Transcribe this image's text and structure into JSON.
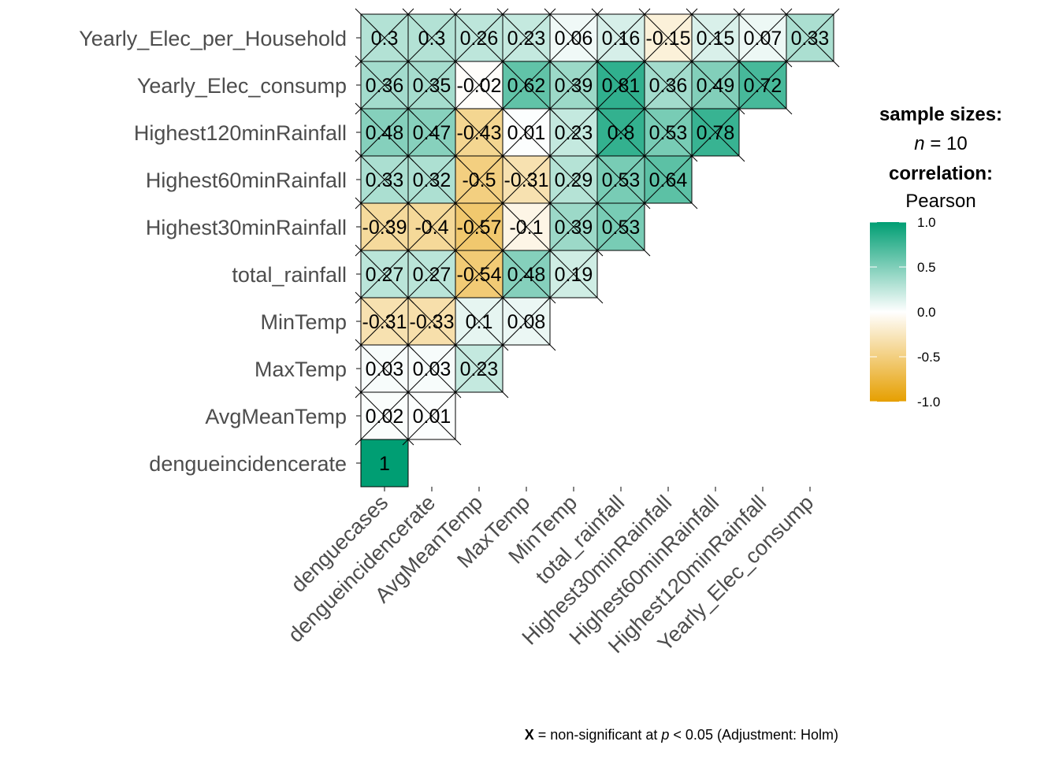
{
  "chart_data": {
    "type": "heatmap",
    "x_categories": [
      "denguecases",
      "dengueincidencerate",
      "AvgMeanTemp",
      "MaxTemp",
      "MinTemp",
      "total_rainfall",
      "Highest30minRainfall",
      "Highest60minRainfall",
      "Highest120minRainfall",
      "Yearly_Elec_consump"
    ],
    "y_categories": [
      "dengueincidencerate",
      "AvgMeanTemp",
      "MaxTemp",
      "MinTemp",
      "total_rainfall",
      "Highest30minRainfall",
      "Highest60minRainfall",
      "Highest120minRainfall",
      "Yearly_Elec_consump",
      "Yearly_Elec_per_Household"
    ],
    "rows": [
      {
        "values": [
          1
        ]
      },
      {
        "values": [
          0.02,
          0.01
        ],
        "labels": [
          "0.02",
          "0.01"
        ]
      },
      {
        "values": [
          0.03,
          0.03,
          0.23
        ],
        "labels": [
          "0.03",
          "0.03",
          "0.23"
        ]
      },
      {
        "values": [
          -0.31,
          -0.33,
          0.1,
          0.08
        ],
        "labels": [
          "-0.31",
          "-0.33",
          "0.1",
          "0.08"
        ]
      },
      {
        "values": [
          0.27,
          0.27,
          -0.54,
          0.48,
          0.19
        ],
        "labels": [
          "0.27",
          "0.27",
          "-0.54",
          "0.48",
          "0.19"
        ]
      },
      {
        "values": [
          -0.39,
          -0.4,
          -0.57,
          -0.1,
          0.39,
          0.53
        ],
        "labels": [
          "-0.39",
          "-0.4",
          "-0.57",
          "-0.1",
          "0.39",
          "0.53"
        ]
      },
      {
        "values": [
          0.33,
          0.32,
          -0.5,
          -0.31,
          0.29,
          0.53,
          0.64
        ],
        "labels": [
          "0.33",
          "0.32",
          "-0.5",
          "-0.31",
          "0.29",
          "0.53",
          "0.64"
        ]
      },
      {
        "values": [
          0.48,
          0.47,
          -0.43,
          0.01,
          0.23,
          0.8,
          0.53,
          0.78
        ],
        "labels": [
          "0.48",
          "0.47",
          "-0.43",
          "0.01",
          "0.23",
          "0.8",
          "0.53",
          "0.78"
        ]
      },
      {
        "values": [
          0.36,
          0.35,
          -0.02,
          0.62,
          0.39,
          0.81,
          0.36,
          0.49,
          0.72
        ],
        "labels": [
          "0.36",
          "0.35",
          "-0.02",
          "0.62",
          "0.39",
          "0.81",
          "0.36",
          "0.49",
          "0.72"
        ]
      },
      {
        "values": [
          0.3,
          0.3,
          0.26,
          0.23,
          0.06,
          0.16,
          -0.15,
          0.15,
          0.07,
          0.33
        ],
        "labels": [
          "0.3",
          "0.3",
          "0.26",
          "0.23",
          "0.06",
          "0.16",
          "-0.15",
          "0.15",
          "0.07",
          "0.33"
        ]
      }
    ],
    "significant_cells": [
      [
        0,
        0
      ]
    ],
    "legend": {
      "sample_title": "sample sizes:",
      "n_symbol": "n",
      "n_rest": " = 10",
      "corr_title": "correlation:",
      "method": "Pearson",
      "ticks": [
        "1.0",
        "0.5",
        "0.0",
        "-0.5",
        "-1.0"
      ],
      "tick_values": [
        1.0,
        0.5,
        0.0,
        -0.5,
        -1.0
      ],
      "range": [
        -1,
        1
      ]
    },
    "caption": {
      "bold": "X",
      "part1": " = non-significant at ",
      "italic": "p",
      "part2": " < 0.05 (Adjustment: Holm)"
    },
    "colors": {
      "low": "#E69F00",
      "mid": "#FFFFFF",
      "high": "#009E73",
      "axis_text": "#4D4D4D"
    }
  }
}
